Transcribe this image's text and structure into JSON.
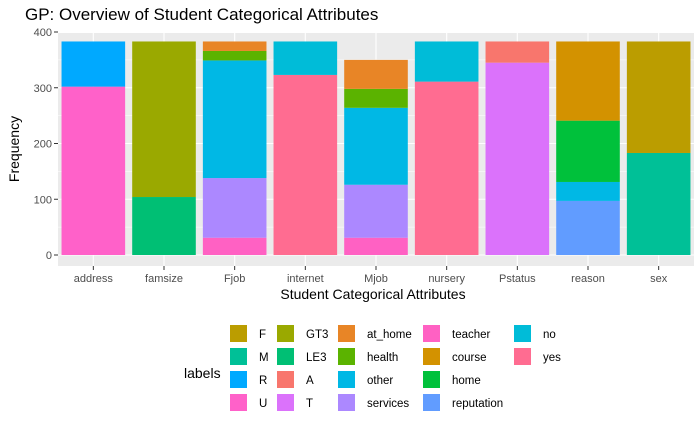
{
  "chart_data": {
    "type": "bar",
    "stacked": true,
    "title": "GP: Overview of Student Categorical Attributes",
    "xlabel": "Student Categorical Attributes",
    "ylabel": "Frequency",
    "ylim": [
      0,
      400
    ],
    "yticks": [
      0,
      100,
      200,
      300,
      400
    ],
    "grid": true,
    "legend_position": "bottom",
    "legend_title": "labels",
    "categories": [
      "address",
      "famsize",
      "Fjob",
      "internet",
      "Mjob",
      "nursery",
      "Pstatus",
      "reason",
      "sex"
    ],
    "levels": [
      {
        "name": "F",
        "color": "#BB9D00"
      },
      {
        "name": "M",
        "color": "#00C097"
      },
      {
        "name": "R",
        "color": "#00A9FF"
      },
      {
        "name": "U",
        "color": "#FF61C9"
      },
      {
        "name": "GT3",
        "color": "#9AA900"
      },
      {
        "name": "LE3",
        "color": "#00BF74"
      },
      {
        "name": "A",
        "color": "#F8766D"
      },
      {
        "name": "T",
        "color": "#DB72FB"
      },
      {
        "name": "at_home",
        "color": "#E88526"
      },
      {
        "name": "health",
        "color": "#5BB300"
      },
      {
        "name": "other",
        "color": "#00B8E5"
      },
      {
        "name": "services",
        "color": "#AC88FF"
      },
      {
        "name": "teacher",
        "color": "#FF61C3"
      },
      {
        "name": "course",
        "color": "#D39200"
      },
      {
        "name": "home",
        "color": "#00C13B"
      },
      {
        "name": "reputation",
        "color": "#619CFF"
      },
      {
        "name": "no",
        "color": "#00BCD8"
      },
      {
        "name": "yes",
        "color": "#FF6C91"
      }
    ],
    "stacks": [
      {
        "category": "address",
        "segments": [
          {
            "label": "U",
            "value": 302
          },
          {
            "label": "R",
            "value": 81
          }
        ]
      },
      {
        "category": "famsize",
        "segments": [
          {
            "label": "LE3",
            "value": 104
          },
          {
            "label": "GT3",
            "value": 279
          }
        ]
      },
      {
        "category": "Fjob",
        "segments": [
          {
            "label": "teacher",
            "value": 31
          },
          {
            "label": "services",
            "value": 107
          },
          {
            "label": "other",
            "value": 211
          },
          {
            "label": "health",
            "value": 17
          },
          {
            "label": "at_home",
            "value": 17
          }
        ]
      },
      {
        "category": "internet",
        "segments": [
          {
            "label": "yes",
            "value": 323
          },
          {
            "label": "no",
            "value": 60
          }
        ]
      },
      {
        "category": "Mjob",
        "segments": [
          {
            "label": "teacher",
            "value": 31
          },
          {
            "label": "services",
            "value": 95
          },
          {
            "label": "other",
            "value": 138
          },
          {
            "label": "health",
            "value": 34
          },
          {
            "label": "at_home",
            "value": 52
          }
        ]
      },
      {
        "category": "nursery",
        "segments": [
          {
            "label": "yes",
            "value": 311
          },
          {
            "label": "no",
            "value": 72
          }
        ]
      },
      {
        "category": "Pstatus",
        "segments": [
          {
            "label": "T",
            "value": 345
          },
          {
            "label": "A",
            "value": 38
          }
        ]
      },
      {
        "category": "reason",
        "segments": [
          {
            "label": "reputation",
            "value": 97
          },
          {
            "label": "other",
            "value": 34
          },
          {
            "label": "home",
            "value": 110
          },
          {
            "label": "course",
            "value": 142
          }
        ]
      },
      {
        "category": "sex",
        "segments": [
          {
            "label": "M",
            "value": 183
          },
          {
            "label": "F",
            "value": 200
          }
        ]
      }
    ]
  }
}
